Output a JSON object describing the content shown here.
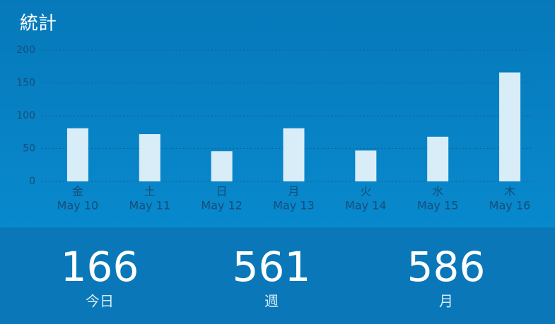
{
  "title": "統計",
  "chart_data": {
    "type": "bar",
    "categories": [
      "金",
      "土",
      "日",
      "月",
      "火",
      "水",
      "木"
    ],
    "dates": [
      "May 10",
      "May 11",
      "May 12",
      "May 13",
      "May 14",
      "May 15",
      "May 16"
    ],
    "values": [
      81,
      72,
      46,
      81,
      47,
      68,
      166
    ],
    "color": "#d9edf8",
    "ylim": [
      0,
      200
    ],
    "yticks": [
      0,
      50,
      100,
      150,
      200
    ],
    "grid": true
  },
  "stats": [
    {
      "value": 166,
      "label": "今日"
    },
    {
      "value": 561,
      "label": "週"
    },
    {
      "value": 586,
      "label": "月"
    }
  ]
}
